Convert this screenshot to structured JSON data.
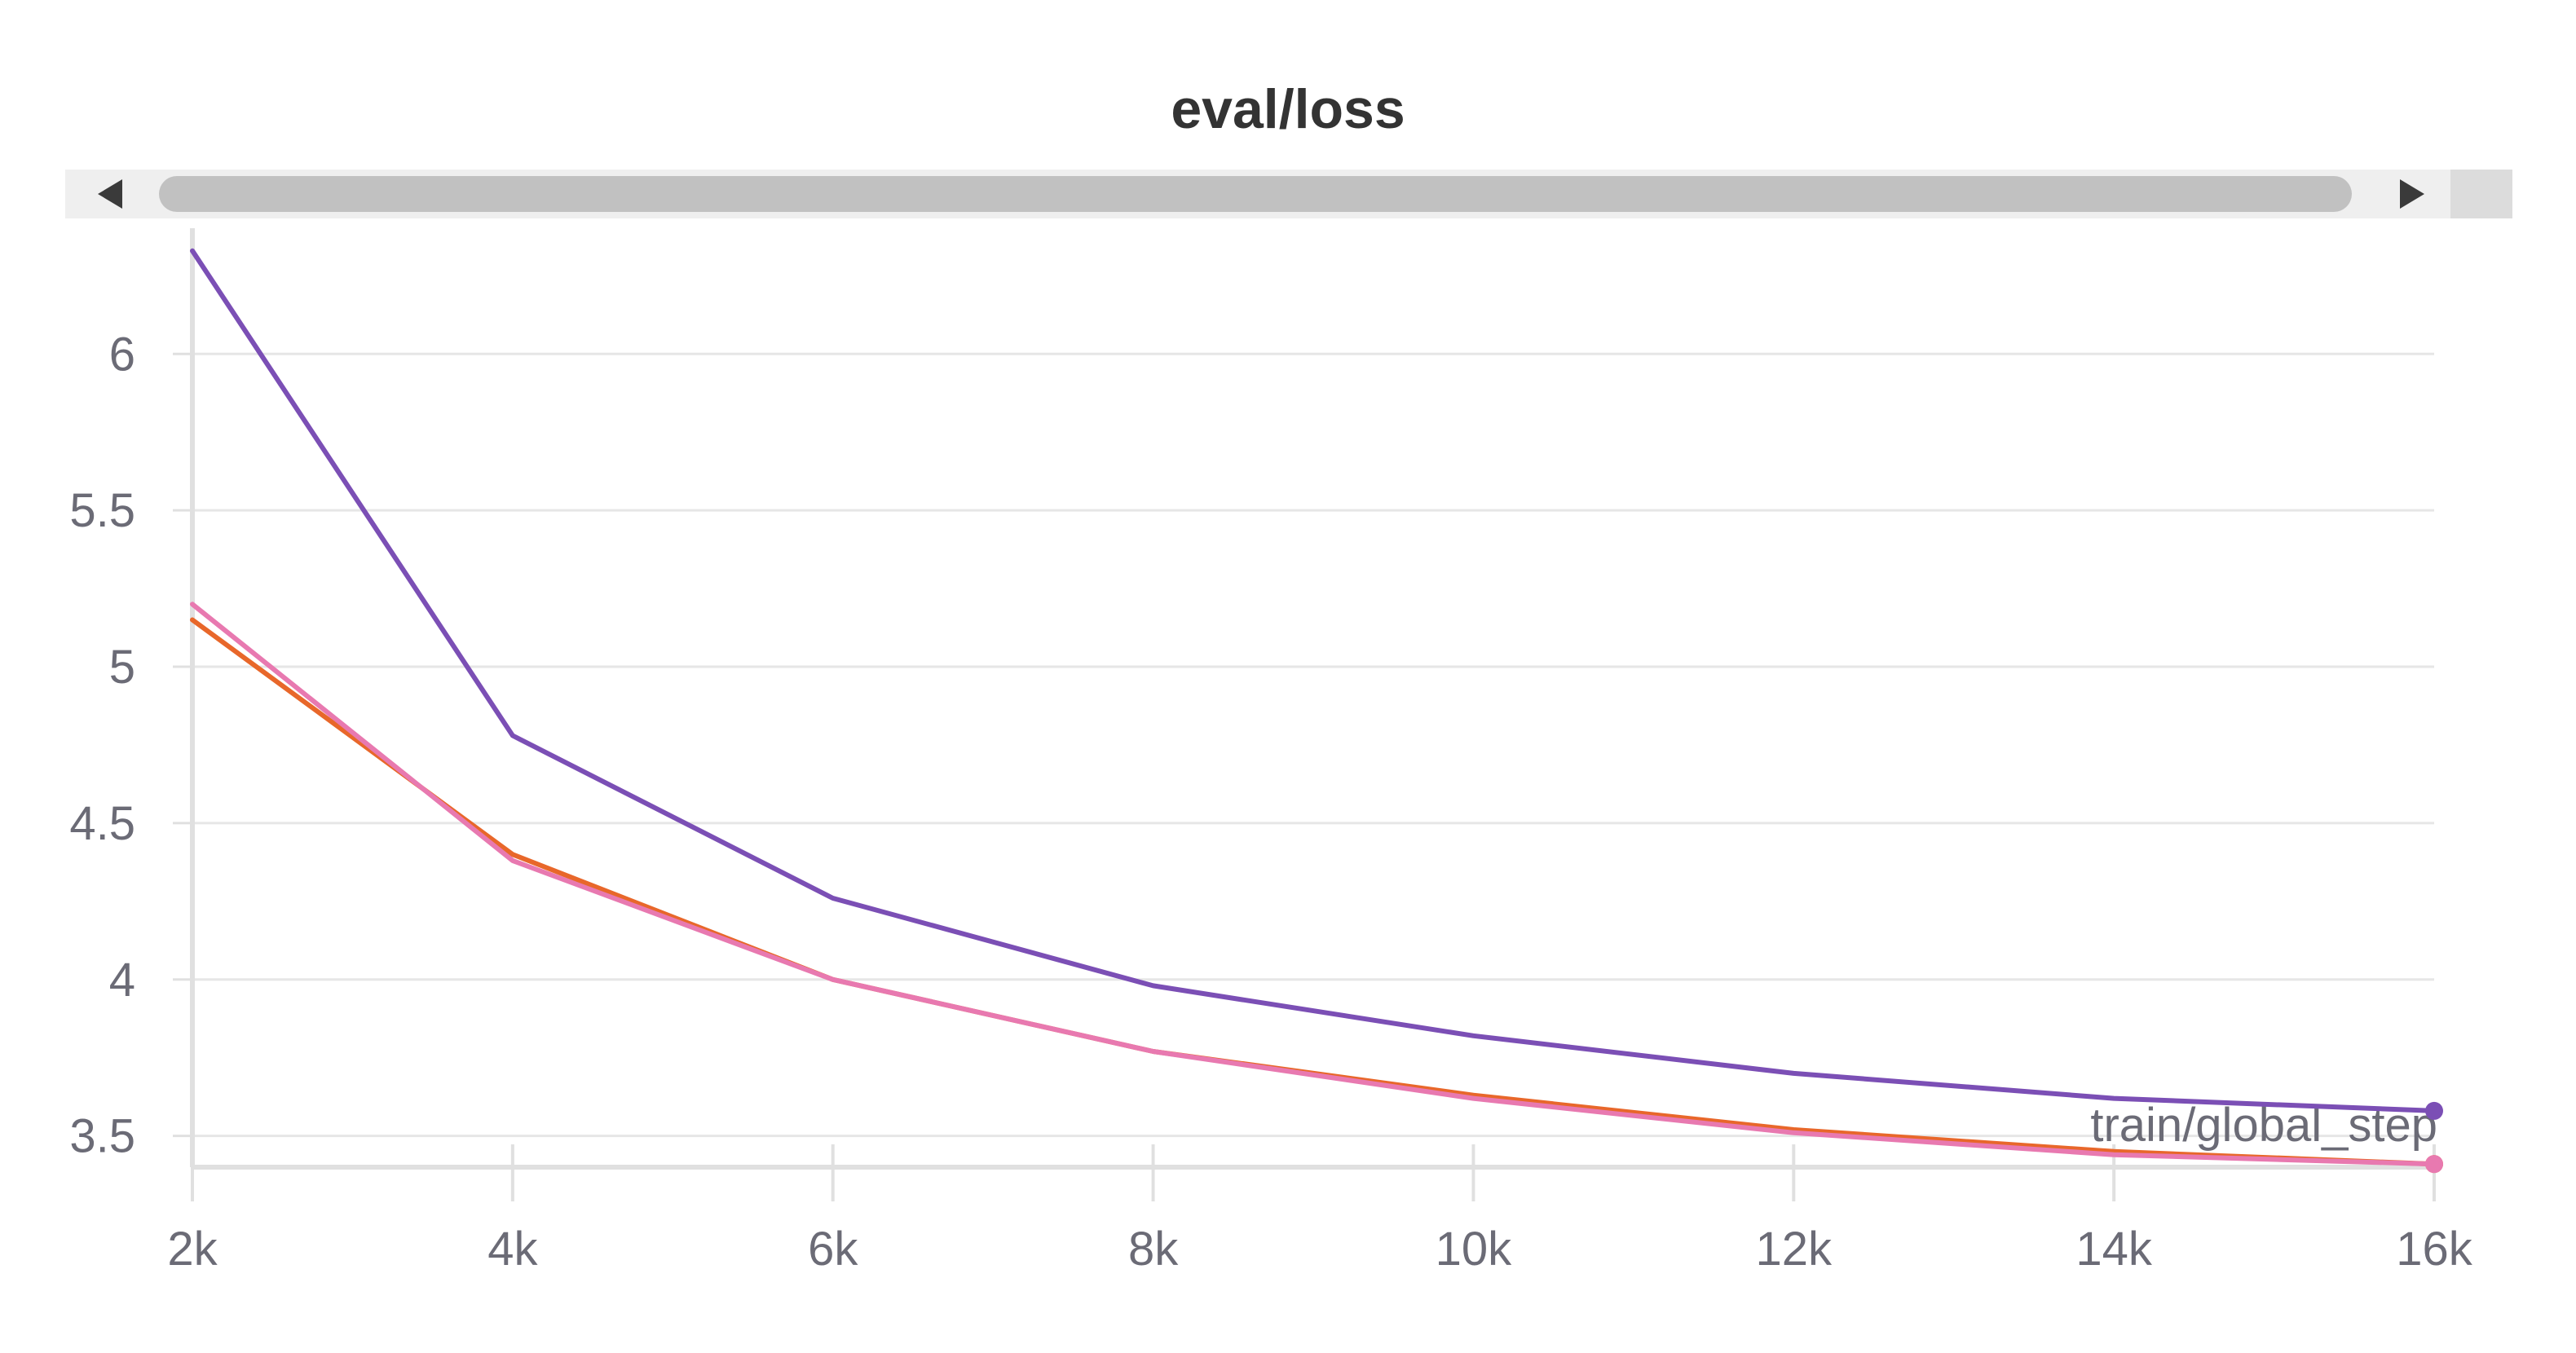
{
  "chart_data": {
    "type": "line",
    "title": "eval/loss",
    "xlabel": "train/global_step",
    "ylabel": "",
    "x": [
      2000,
      4000,
      6000,
      8000,
      10000,
      12000,
      14000,
      16000
    ],
    "xlim": [
      2000,
      16000
    ],
    "ylim": [
      3.4,
      6.35
    ],
    "x_ticks": [
      2000,
      4000,
      6000,
      8000,
      10000,
      12000,
      14000,
      16000
    ],
    "x_tick_labels": [
      "2k",
      "4k",
      "6k",
      "8k",
      "10k",
      "12k",
      "14k",
      "16k"
    ],
    "y_ticks": [
      3.5,
      4,
      4.5,
      5,
      5.5,
      6
    ],
    "y_tick_labels": [
      "3.5",
      "4",
      "4.5",
      "5",
      "5.5",
      "6"
    ],
    "grid": true,
    "series": [
      {
        "color": "#7b4fb5",
        "values": [
          6.33,
          4.78,
          4.26,
          3.98,
          3.82,
          3.7,
          3.62,
          3.58
        ]
      },
      {
        "color": "#e8672a",
        "values": [
          5.15,
          4.4,
          4.0,
          3.77,
          3.63,
          3.52,
          3.45,
          3.41
        ]
      },
      {
        "color": "#e879b0",
        "values": [
          5.2,
          4.38,
          4.0,
          3.77,
          3.62,
          3.51,
          3.44,
          3.41
        ]
      }
    ]
  },
  "scrollbar": {
    "left_icon": "caret-left-icon",
    "right_icon": "caret-right-icon"
  }
}
